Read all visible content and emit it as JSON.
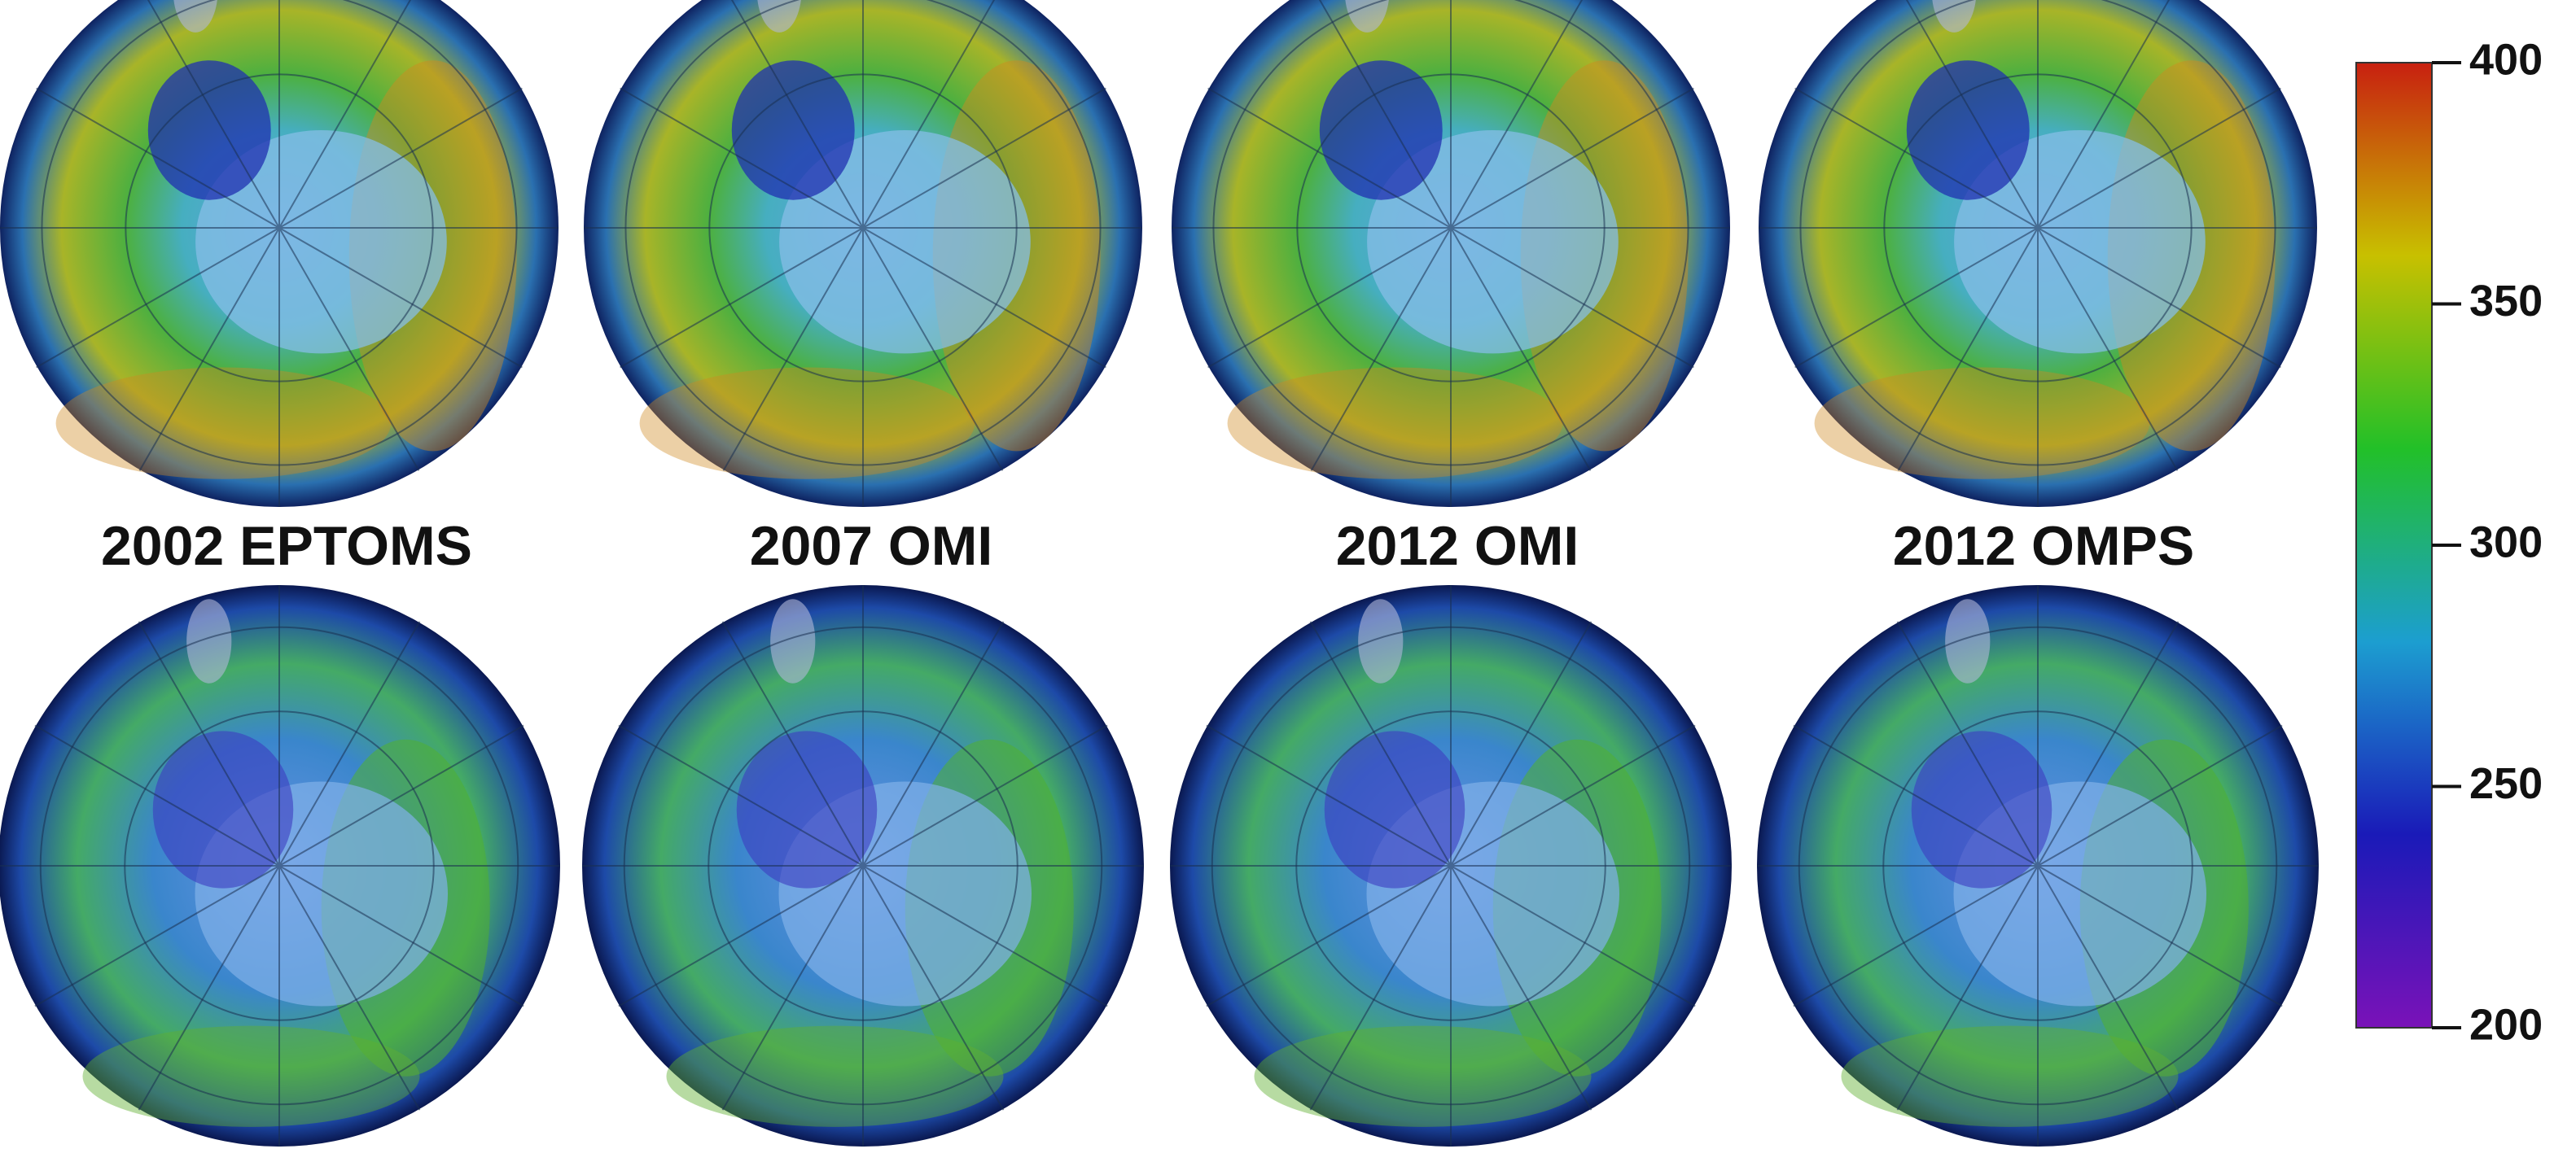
{
  "panel_labels": [
    "2002 EPTOMS",
    "2007 OMI",
    "2012 OMI",
    "2012 OMPS"
  ],
  "colorbar": {
    "lim": [
      200,
      400
    ],
    "ticks": [
      200,
      250,
      300,
      350,
      400
    ],
    "colors": [
      "#7a12b8",
      "#1a1ab8",
      "#1c9ed0",
      "#22c028",
      "#c8c000",
      "#c82010"
    ]
  }
}
